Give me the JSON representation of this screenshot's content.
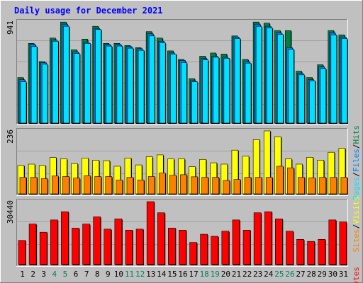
{
  "chart_data": [
    {
      "type": "bar",
      "title": "Daily usage for December 2021",
      "panel": "hits-files-pages",
      "max_label": "941",
      "legend": [
        "Pages",
        "/",
        "Files",
        "/",
        "Hits"
      ],
      "categories": [
        "1",
        "2",
        "3",
        "4",
        "5",
        "6",
        "7",
        "8",
        "9",
        "10",
        "11",
        "12",
        "13",
        "14",
        "15",
        "16",
        "17",
        "18",
        "19",
        "20",
        "21",
        "22",
        "23",
        "24",
        "25",
        "26",
        "27",
        "28",
        "29",
        "30",
        "31"
      ],
      "weekend_days": [
        "4",
        "5",
        "11",
        "12",
        "18",
        "19",
        "25",
        "26"
      ],
      "ylim": [
        0,
        941
      ],
      "series": [
        {
          "name": "Hits",
          "values": [
            420,
            740,
            570,
            790,
            940,
            680,
            780,
            900,
            740,
            740,
            720,
            700,
            850,
            790,
            670,
            590,
            410,
            620,
            650,
            640,
            810,
            590,
            940,
            930,
            860,
            860,
            480,
            420,
            540,
            860,
            820
          ]
        },
        {
          "name": "Files",
          "values": [
            400,
            730,
            560,
            770,
            920,
            660,
            750,
            880,
            730,
            730,
            710,
            690,
            830,
            760,
            650,
            580,
            390,
            600,
            620,
            610,
            800,
            570,
            920,
            900,
            840,
            700,
            460,
            400,
            520,
            840,
            800
          ]
        },
        {
          "name": "Pages",
          "values": [
            380,
            710,
            545,
            760,
            900,
            645,
            740,
            870,
            715,
            715,
            695,
            675,
            810,
            745,
            640,
            560,
            380,
            585,
            610,
            600,
            785,
            555,
            900,
            885,
            825,
            685,
            445,
            390,
            505,
            820,
            785
          ]
        }
      ]
    },
    {
      "type": "bar",
      "panel": "visits-sites",
      "max_label": "236",
      "legend": [
        "Sites",
        "/",
        "Visits"
      ],
      "categories": [
        "1",
        "2",
        "3",
        "4",
        "5",
        "6",
        "7",
        "8",
        "9",
        "10",
        "11",
        "12",
        "13",
        "14",
        "15",
        "16",
        "17",
        "18",
        "19",
        "20",
        "21",
        "22",
        "23",
        "24",
        "25",
        "26",
        "27",
        "28",
        "29",
        "30",
        "31"
      ],
      "ylim": [
        0,
        236
      ],
      "series": [
        {
          "name": "Visits",
          "values": [
            105,
            110,
            105,
            135,
            130,
            112,
            133,
            125,
            123,
            102,
            133,
            107,
            138,
            145,
            130,
            130,
            100,
            128,
            115,
            110,
            163,
            140,
            203,
            236,
            214,
            130,
            110,
            136,
            125,
            155,
            170
          ]
        },
        {
          "name": "Sites",
          "values": [
            60,
            60,
            55,
            65,
            63,
            57,
            66,
            63,
            63,
            50,
            60,
            50,
            63,
            76,
            68,
            70,
            62,
            60,
            60,
            48,
            52,
            60,
            60,
            60,
            102,
            96,
            60,
            58,
            60,
            60,
            60
          ]
        }
      ]
    },
    {
      "type": "bar",
      "panel": "kbytes",
      "max_label": "30440",
      "legend": [
        "KBytes"
      ],
      "categories": [
        "1",
        "2",
        "3",
        "4",
        "5",
        "6",
        "7",
        "8",
        "9",
        "10",
        "11",
        "12",
        "13",
        "14",
        "15",
        "16",
        "17",
        "18",
        "19",
        "20",
        "21",
        "22",
        "23",
        "24",
        "25",
        "26",
        "27",
        "28",
        "29",
        "30",
        "31"
      ],
      "ylim": [
        0,
        30440
      ],
      "series": [
        {
          "name": "KBytes",
          "values": [
            11500,
            19500,
            15500,
            21500,
            25500,
            17500,
            19500,
            23000,
            17000,
            22000,
            16500,
            17000,
            30440,
            25000,
            17500,
            16500,
            10500,
            14500,
            13500,
            16000,
            21500,
            16500,
            25000,
            25500,
            22000,
            16000,
            12000,
            11000,
            12000,
            21500,
            20500
          ]
        }
      ]
    }
  ],
  "colors": {
    "hits": "#008040",
    "files": "#0080ff",
    "pages": "#00e0ff",
    "visits": "#ffff00",
    "sites": "#ff8000",
    "kbytes": "#ff0000",
    "title": "#0000ff",
    "weekend": "#00805c",
    "panel_bg": "#c0c0c0"
  }
}
